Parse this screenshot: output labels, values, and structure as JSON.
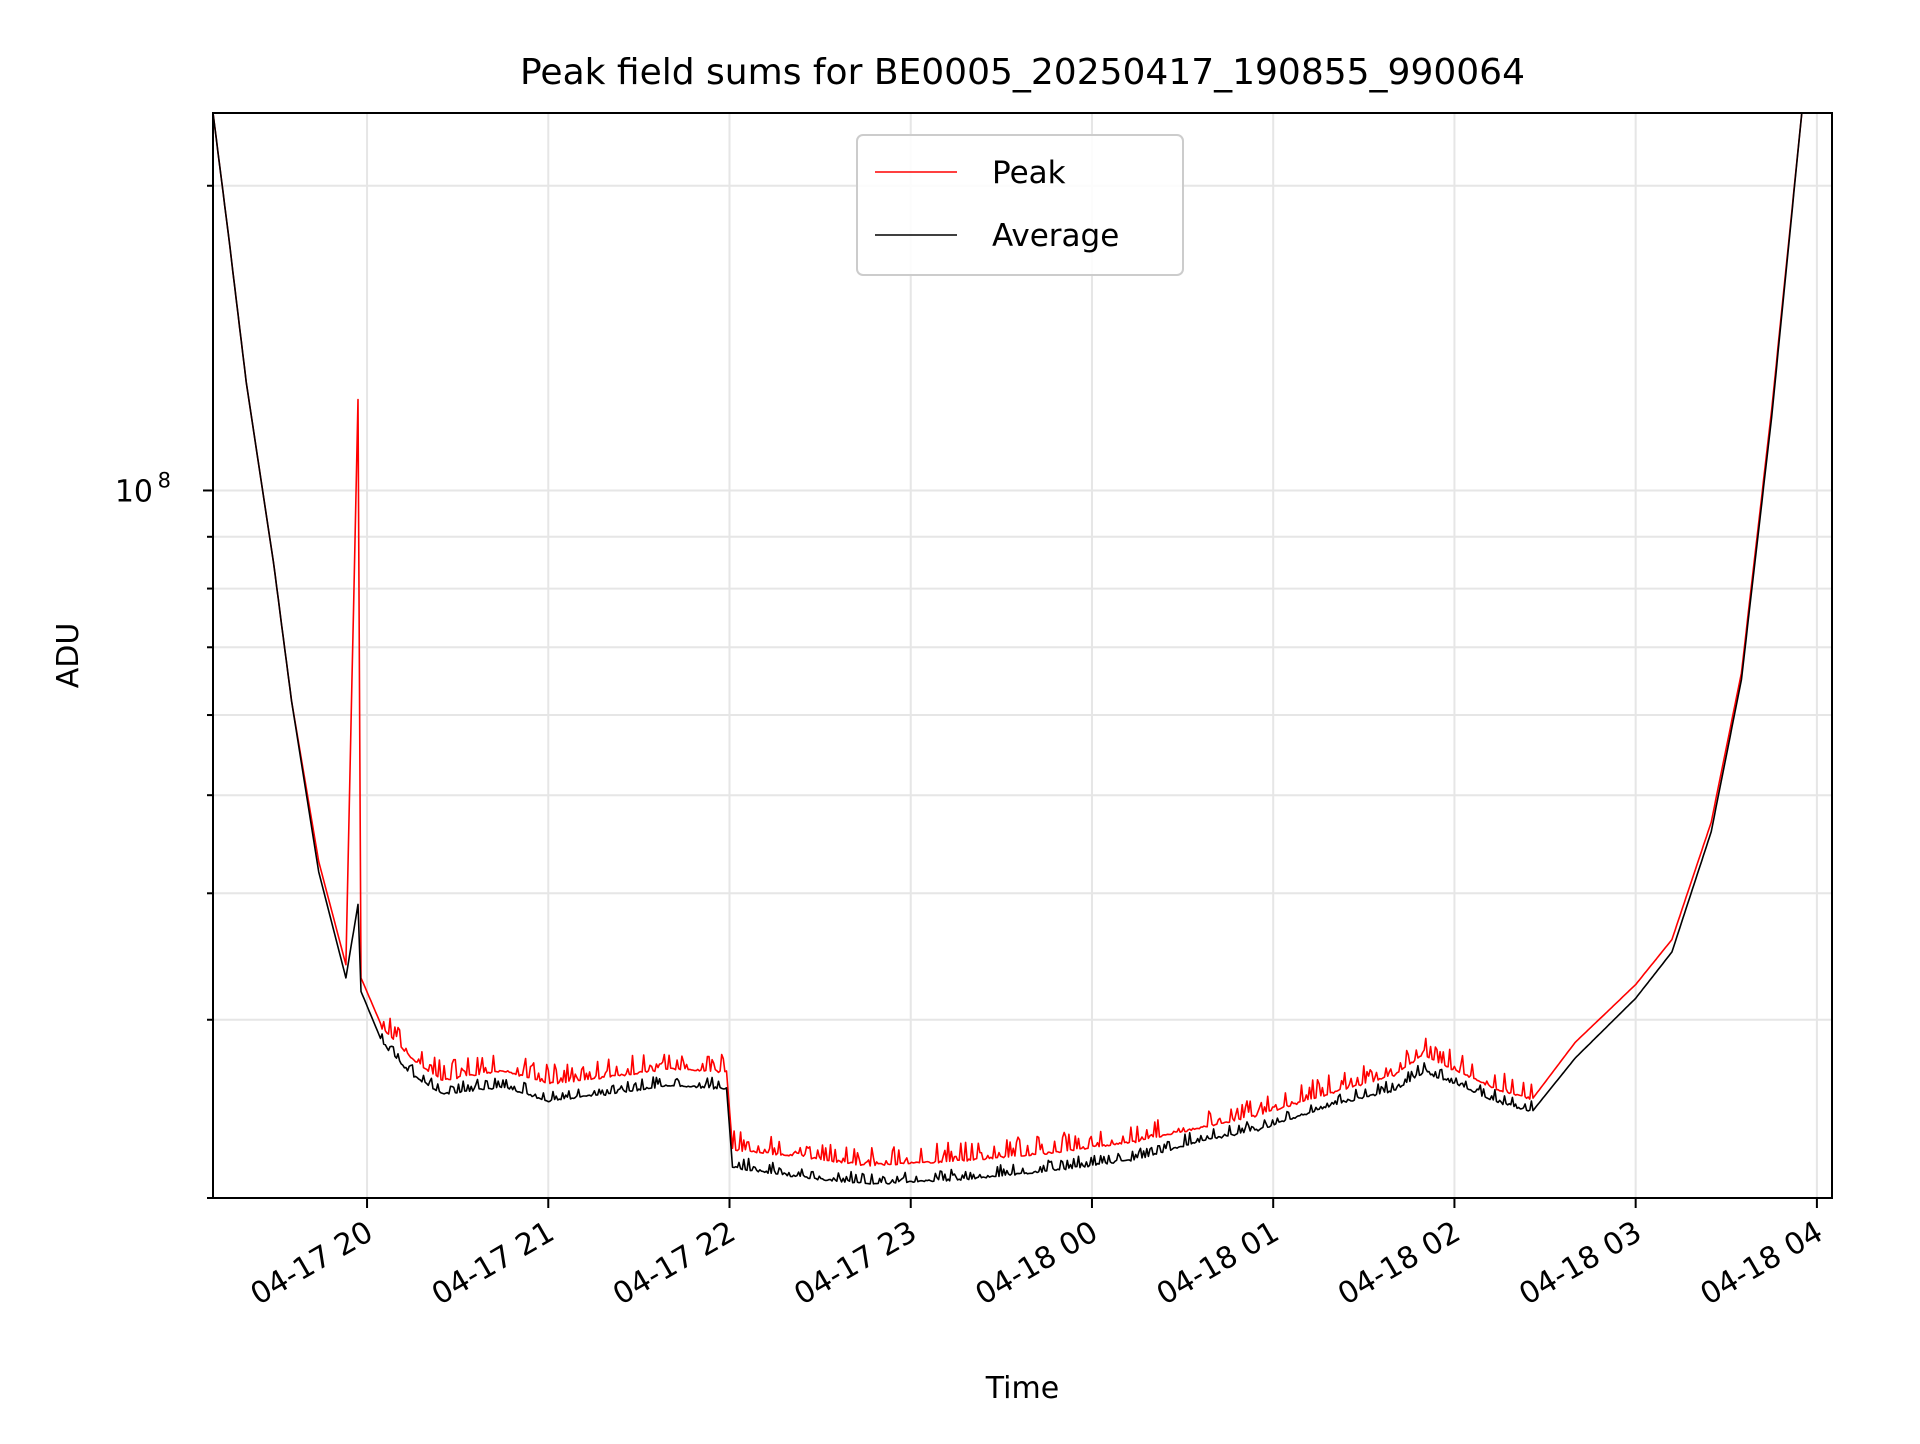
{
  "chart_data": {
    "type": "line",
    "title": "Peak field sums for BE0005_20250417_190855_990064",
    "xlabel": "Time",
    "ylabel": "ADU",
    "y_scale": "log",
    "grid": true,
    "legend_position": "upper center",
    "xlim": [
      "2025-04-17 19:09",
      "2025-04-18 04:05"
    ],
    "ylim": [
      20000000,
      236000000
    ],
    "x_ticks": [
      {
        "t": "2025-04-17 20:00",
        "label": "04-17 20"
      },
      {
        "t": "2025-04-17 21:00",
        "label": "04-17 21"
      },
      {
        "t": "2025-04-17 22:00",
        "label": "04-17 22"
      },
      {
        "t": "2025-04-17 23:00",
        "label": "04-17 23"
      },
      {
        "t": "2025-04-18 00:00",
        "label": "04-18 00"
      },
      {
        "t": "2025-04-18 01:00",
        "label": "04-18 01"
      },
      {
        "t": "2025-04-18 02:00",
        "label": "04-18 02"
      },
      {
        "t": "2025-04-18 03:00",
        "label": "04-18 03"
      },
      {
        "t": "2025-04-18 04:00",
        "label": "04-18 04"
      }
    ],
    "y_major_ticks": [
      {
        "value": 100000000,
        "base": "10",
        "exp": "8"
      }
    ],
    "series": [
      {
        "name": "Peak",
        "color": "#ff0000",
        "points": [
          [
            "2025-04-17 19:09",
            236000000
          ],
          [
            "2025-04-17 19:14",
            180000000
          ],
          [
            "2025-04-17 19:20",
            128000000
          ],
          [
            "2025-04-17 19:29",
            85000000
          ],
          [
            "2025-04-17 19:35",
            62000000
          ],
          [
            "2025-04-17 19:44",
            43000000
          ],
          [
            "2025-04-17 19:53",
            34000000
          ],
          [
            "2025-04-17 19:57",
            123000000
          ],
          [
            "2025-04-17 19:58",
            33000000
          ],
          [
            "2025-04-17 20:05",
            29500000
          ],
          [
            "2025-04-17 20:15",
            27500000
          ],
          [
            "2025-04-17 20:25",
            26200000
          ],
          [
            "2025-04-17 20:45",
            26800000
          ],
          [
            "2025-04-17 21:00",
            26000000
          ],
          [
            "2025-04-17 21:20",
            26400000
          ],
          [
            "2025-04-17 21:40",
            26900000
          ],
          [
            "2025-04-17 21:59",
            26700000
          ],
          [
            "2025-04-17 22:01",
            22400000
          ],
          [
            "2025-04-17 22:25",
            22000000
          ],
          [
            "2025-04-17 22:45",
            21600000
          ],
          [
            "2025-04-17 23:15",
            21800000
          ],
          [
            "2025-04-17 23:45",
            22200000
          ],
          [
            "2025-04-18 00:15",
            22800000
          ],
          [
            "2025-04-18 00:35",
            23500000
          ],
          [
            "2025-04-18 00:55",
            24200000
          ],
          [
            "2025-04-18 01:20",
            25500000
          ],
          [
            "2025-04-18 01:40",
            26500000
          ],
          [
            "2025-04-18 01:50",
            27800000
          ],
          [
            "2025-04-18 02:00",
            26800000
          ],
          [
            "2025-04-18 02:15",
            25600000
          ],
          [
            "2025-04-18 02:26",
            25100000
          ],
          [
            "2025-04-18 02:40",
            28500000
          ],
          [
            "2025-04-18 03:00",
            32500000
          ],
          [
            "2025-04-18 03:12",
            36000000
          ],
          [
            "2025-04-18 03:25",
            47000000
          ],
          [
            "2025-04-18 03:35",
            66000000
          ],
          [
            "2025-04-18 03:45",
            120000000
          ],
          [
            "2025-04-18 03:55",
            236000000
          ]
        ]
      },
      {
        "name": "Average",
        "color": "#000000",
        "points": [
          [
            "2025-04-17 19:09",
            236000000
          ],
          [
            "2025-04-17 19:14",
            180000000
          ],
          [
            "2025-04-17 19:20",
            128000000
          ],
          [
            "2025-04-17 19:29",
            85000000
          ],
          [
            "2025-04-17 19:35",
            62000000
          ],
          [
            "2025-04-17 19:44",
            42000000
          ],
          [
            "2025-04-17 19:53",
            33000000
          ],
          [
            "2025-04-17 19:57",
            39000000
          ],
          [
            "2025-04-17 19:58",
            32000000
          ],
          [
            "2025-04-17 20:05",
            28500000
          ],
          [
            "2025-04-17 20:15",
            26500000
          ],
          [
            "2025-04-17 20:25",
            25400000
          ],
          [
            "2025-04-17 20:45",
            25800000
          ],
          [
            "2025-04-17 21:00",
            25000000
          ],
          [
            "2025-04-17 21:20",
            25400000
          ],
          [
            "2025-04-17 21:40",
            25900000
          ],
          [
            "2025-04-17 21:59",
            25700000
          ],
          [
            "2025-04-17 22:01",
            21500000
          ],
          [
            "2025-04-17 22:25",
            21000000
          ],
          [
            "2025-04-17 22:45",
            20700000
          ],
          [
            "2025-04-17 23:15",
            20900000
          ],
          [
            "2025-04-17 23:45",
            21300000
          ],
          [
            "2025-04-18 00:15",
            21900000
          ],
          [
            "2025-04-18 00:35",
            22800000
          ],
          [
            "2025-04-18 00:55",
            23400000
          ],
          [
            "2025-04-18 01:20",
            24800000
          ],
          [
            "2025-04-18 01:40",
            25600000
          ],
          [
            "2025-04-18 01:50",
            26700000
          ],
          [
            "2025-04-18 02:00",
            26000000
          ],
          [
            "2025-04-18 02:15",
            24900000
          ],
          [
            "2025-04-18 02:26",
            24400000
          ],
          [
            "2025-04-18 02:40",
            27500000
          ],
          [
            "2025-04-18 03:00",
            31500000
          ],
          [
            "2025-04-18 03:12",
            35000000
          ],
          [
            "2025-04-18 03:25",
            46000000
          ],
          [
            "2025-04-18 03:35",
            65000000
          ],
          [
            "2025-04-18 03:45",
            118000000
          ],
          [
            "2025-04-18 03:55",
            236000000
          ]
        ]
      }
    ]
  }
}
